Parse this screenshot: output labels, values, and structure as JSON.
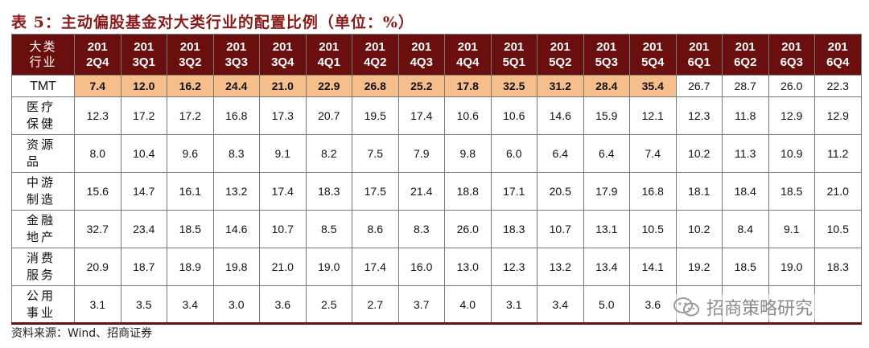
{
  "title": "表 5：主动偏股基金对大类行业的配置比例（单位：%）",
  "header": {
    "corner": [
      "大类",
      "行业"
    ],
    "quarters": [
      [
        "201",
        "2Q4"
      ],
      [
        "201",
        "3Q1"
      ],
      [
        "201",
        "3Q2"
      ],
      [
        "201",
        "3Q3"
      ],
      [
        "201",
        "3Q4"
      ],
      [
        "201",
        "4Q1"
      ],
      [
        "201",
        "4Q2"
      ],
      [
        "201",
        "4Q3"
      ],
      [
        "201",
        "4Q4"
      ],
      [
        "201",
        "5Q1"
      ],
      [
        "201",
        "5Q2"
      ],
      [
        "201",
        "5Q3"
      ],
      [
        "201",
        "5Q4"
      ],
      [
        "201",
        "6Q1"
      ],
      [
        "201",
        "6Q2"
      ],
      [
        "201",
        "6Q3"
      ],
      [
        "201",
        "6Q4"
      ]
    ]
  },
  "rows": [
    {
      "label": [
        "TMT"
      ],
      "values": [
        "7.4",
        "12.0",
        "16.2",
        "24.4",
        "21.0",
        "22.9",
        "26.8",
        "25.2",
        "17.8",
        "32.5",
        "31.2",
        "28.4",
        "35.4",
        "26.7",
        "28.7",
        "26.0",
        "22.3"
      ],
      "highlight_count": 13
    },
    {
      "label": [
        "医疗",
        "保健"
      ],
      "values": [
        "12.3",
        "17.2",
        "17.2",
        "16.8",
        "17.3",
        "20.7",
        "19.5",
        "17.4",
        "10.6",
        "10.6",
        "14.6",
        "15.9",
        "12.1",
        "12.3",
        "11.8",
        "12.9",
        "12.9"
      ]
    },
    {
      "label": [
        "资源",
        "品"
      ],
      "values": [
        "8.0",
        "10.4",
        "9.6",
        "8.3",
        "9.1",
        "8.2",
        "7.5",
        "7.9",
        "9.8",
        "6.0",
        "6.4",
        "6.4",
        "7.4",
        "10.2",
        "11.3",
        "10.9",
        "11.2"
      ]
    },
    {
      "label": [
        "中游",
        "制造"
      ],
      "values": [
        "15.6",
        "14.7",
        "16.1",
        "13.2",
        "17.4",
        "18.3",
        "17.5",
        "21.4",
        "18.8",
        "17.1",
        "20.5",
        "17.9",
        "16.8",
        "18.1",
        "18.4",
        "18.5",
        "21.0"
      ]
    },
    {
      "label": [
        "金融",
        "地产"
      ],
      "values": [
        "32.7",
        "23.4",
        "18.5",
        "14.6",
        "10.7",
        "8.5",
        "8.6",
        "8.3",
        "26.0",
        "18.3",
        "10.7",
        "13.1",
        "10.5",
        "10.2",
        "8.4",
        "9.1",
        "10.5"
      ]
    },
    {
      "label": [
        "消费",
        "服务"
      ],
      "values": [
        "20.9",
        "18.7",
        "18.9",
        "19.8",
        "21.0",
        "19.0",
        "17.4",
        "16.0",
        "13.0",
        "12.3",
        "13.2",
        "13.4",
        "14.1",
        "19.2",
        "18.5",
        "19.0",
        "18.3"
      ]
    },
    {
      "label": [
        "公用",
        "事业"
      ],
      "values": [
        "3.1",
        "3.5",
        "3.4",
        "3.0",
        "3.6",
        "2.5",
        "2.7",
        "3.7",
        "4.0",
        "3.1",
        "3.4",
        "5.0",
        "3.6",
        "",
        "",
        "",
        ""
      ]
    }
  ],
  "source": "资料来源：Wind、招商证券",
  "watermark": "招商策略研究",
  "colors": {
    "header_bg": "#6B0E0E",
    "highlight": "#F6BE8A",
    "title": "#8B1A1A"
  }
}
